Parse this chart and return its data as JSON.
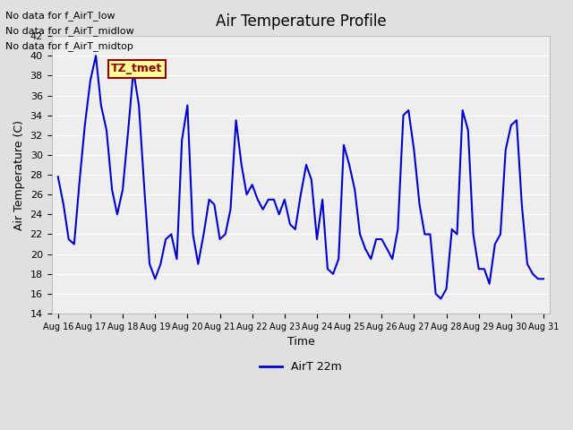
{
  "title": "Air Temperature Profile",
  "xlabel": "Time",
  "ylabel": "Air Temperature (C)",
  "ylim": [
    14,
    42
  ],
  "yticks": [
    14,
    16,
    18,
    20,
    22,
    24,
    26,
    28,
    30,
    32,
    34,
    36,
    38,
    40,
    42
  ],
  "line_color": "#0000cc",
  "line_width": 1.5,
  "legend_label": "AirT 22m",
  "bg_color": "#e0e0e0",
  "plot_bg_color": "#eeeeee",
  "annotations": [
    "No data for f_AirT_low",
    "No data for f_AirT_midlow",
    "No data for f_AirT_midtop"
  ],
  "tz_label": "TZ_tmet",
  "x_tick_labels": [
    "Aug 16",
    "Aug 17",
    "Aug 18",
    "Aug 19",
    "Aug 20",
    "Aug 21",
    "Aug 22",
    "Aug 23",
    "Aug 24",
    "Aug 25",
    "Aug 26",
    "Aug 27",
    "Aug 28",
    "Aug 29",
    "Aug 30",
    "Aug 31"
  ],
  "time_values": [
    0.0,
    0.17,
    0.33,
    0.5,
    0.67,
    0.83,
    1.0,
    1.17,
    1.33,
    1.5,
    1.67,
    1.83,
    2.0,
    2.17,
    2.33,
    2.5,
    2.67,
    2.83,
    3.0,
    3.17,
    3.33,
    3.5,
    3.67,
    3.83,
    4.0,
    4.17,
    4.33,
    4.5,
    4.67,
    4.83,
    5.0,
    5.17,
    5.33,
    5.5,
    5.67,
    5.83,
    6.0,
    6.17,
    6.33,
    6.5,
    6.67,
    6.83,
    7.0,
    7.17,
    7.33,
    7.5,
    7.67,
    7.83,
    8.0,
    8.17,
    8.33,
    8.5,
    8.67,
    8.83,
    9.0,
    9.17,
    9.33,
    9.5,
    9.67,
    9.83,
    10.0,
    10.17,
    10.33,
    10.5,
    10.67,
    10.83,
    11.0,
    11.17,
    11.33,
    11.5,
    11.67,
    11.83,
    12.0,
    12.17,
    12.33,
    12.5,
    12.67,
    12.83,
    13.0,
    13.17,
    13.33,
    13.5,
    13.67,
    13.83,
    14.0,
    14.17,
    14.33,
    14.5,
    14.67,
    14.83,
    15.0
  ],
  "temp_values": [
    27.8,
    25.0,
    21.5,
    21.0,
    27.5,
    33.0,
    37.5,
    40.0,
    35.0,
    32.5,
    26.5,
    24.0,
    26.5,
    32.5,
    38.5,
    35.0,
    26.5,
    19.0,
    17.5,
    19.0,
    21.5,
    22.0,
    19.5,
    31.5,
    35.0,
    22.0,
    19.0,
    22.0,
    25.5,
    25.0,
    21.5,
    22.0,
    24.5,
    33.5,
    29.0,
    26.0,
    27.0,
    25.5,
    24.5,
    25.5,
    25.5,
    24.0,
    25.5,
    23.0,
    22.5,
    26.0,
    29.0,
    27.5,
    21.5,
    25.5,
    18.5,
    18.0,
    19.5,
    31.0,
    29.0,
    26.5,
    22.0,
    20.5,
    19.5,
    21.5,
    21.5,
    20.5,
    19.5,
    22.5,
    34.0,
    34.5,
    30.5,
    25.0,
    22.0,
    22.0,
    16.0,
    15.5,
    16.5,
    22.5,
    22.0,
    34.5,
    32.5,
    22.0,
    18.5,
    18.5,
    17.0,
    21.0,
    22.0,
    30.5,
    33.0,
    33.5,
    25.0,
    19.0,
    18.0,
    17.5,
    17.5
  ]
}
